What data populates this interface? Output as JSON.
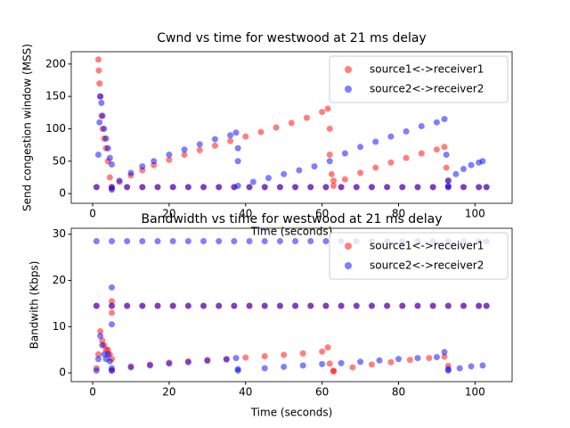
{
  "chart_data": [
    {
      "type": "scatter",
      "title": "Cwnd vs time for westwood at 21 ms delay",
      "x_label": "Time (seconds)",
      "y_label": "Send congestion window (MSS)",
      "xlim": [
        -5.6,
        109.7
      ],
      "xticks": [
        0,
        20,
        40,
        60,
        80,
        100
      ],
      "ylim": [
        -15,
        219
      ],
      "yticks": [
        0,
        50,
        100,
        150,
        200
      ],
      "legend": "upper right",
      "series": [
        {
          "name": "source1<->receiver1",
          "color": "#ff0000",
          "x": [
            1,
            5,
            9,
            13,
            17,
            21,
            25,
            29,
            33,
            37,
            41,
            45,
            49,
            53,
            57,
            61,
            65,
            69,
            73,
            77,
            81,
            85,
            89,
            93,
            97,
            101,
            103,
            1.5,
            1.6,
            1.8,
            2,
            2.3,
            2.6,
            3,
            3.5,
            4,
            4.5,
            5,
            7,
            10,
            13,
            16,
            20,
            24,
            28,
            32,
            36,
            40,
            44,
            48,
            52,
            56,
            60,
            61.5,
            62,
            62,
            62.5,
            63,
            63,
            66,
            70,
            74,
            78,
            82,
            86,
            90,
            92,
            92.5,
            93
          ],
          "values": [
            10,
            10,
            10,
            10,
            10,
            10,
            10,
            10,
            10,
            10,
            10,
            10,
            10,
            10,
            10,
            10,
            10,
            10,
            10,
            10,
            10,
            10,
            10,
            10,
            10,
            10,
            10,
            207,
            190,
            170,
            150,
            120,
            100,
            85,
            70,
            50,
            25,
            8,
            18,
            28,
            36,
            44,
            52,
            60,
            67,
            74,
            81,
            88,
            95,
            102,
            109,
            117,
            126,
            131,
            100,
            60,
            30,
            20,
            12,
            22,
            32,
            40,
            48,
            55,
            62,
            68,
            72,
            40,
            20
          ]
        },
        {
          "name": "source2<->receiver2",
          "color": "#0000ff",
          "x": [
            1,
            5,
            9,
            13,
            17,
            21,
            25,
            29,
            33,
            37,
            41,
            45,
            49,
            53,
            57,
            61,
            65,
            69,
            73,
            77,
            81,
            85,
            89,
            93,
            97,
            101,
            103,
            1.5,
            1.8,
            2,
            2.3,
            2.6,
            3,
            3.5,
            4,
            4.5,
            5,
            5,
            7,
            10,
            13,
            16,
            20,
            24,
            28,
            32,
            36,
            37.5,
            38,
            38,
            38,
            42,
            46,
            50,
            54,
            58,
            62,
            66,
            70,
            74,
            78,
            82,
            86,
            90,
            92,
            92.5,
            93,
            93,
            95,
            97,
            99,
            101,
            102
          ],
          "values": [
            10,
            10,
            10,
            10,
            10,
            10,
            10,
            10,
            10,
            10,
            10,
            10,
            10,
            10,
            10,
            10,
            10,
            10,
            10,
            10,
            10,
            10,
            10,
            10,
            10,
            10,
            10,
            60,
            110,
            150,
            140,
            120,
            100,
            85,
            70,
            55,
            45,
            6,
            20,
            32,
            42,
            50,
            60,
            68,
            76,
            84,
            90,
            94,
            70,
            50,
            12,
            18,
            24,
            30,
            36,
            42,
            50,
            62,
            72,
            80,
            88,
            96,
            104,
            110,
            115,
            60,
            20,
            12,
            30,
            38,
            44,
            48,
            50
          ]
        }
      ]
    },
    {
      "type": "scatter",
      "title": "Bandwidth vs time for westwood at 21 ms delay",
      "x_label": "Time (seconds)",
      "y_label": "Bandwith (Kbps)",
      "xlim": [
        -5.6,
        109.7
      ],
      "xticks": [
        0,
        20,
        40,
        60,
        80,
        100
      ],
      "ylim": [
        -1.9,
        31.3
      ],
      "yticks": [
        0,
        10,
        20,
        30
      ],
      "legend": "upper right",
      "series": [
        {
          "name": "source1<->receiver1",
          "color": "#ff0000",
          "x": [
            1,
            5,
            9,
            13,
            17,
            21,
            25,
            29,
            33,
            37,
            41,
            45,
            49,
            53,
            57,
            61,
            65,
            69,
            73,
            77,
            81,
            85,
            89,
            93,
            97,
            101,
            103,
            1,
            1.5,
            2,
            2.5,
            3,
            3.5,
            4,
            4.5,
            5,
            5,
            5,
            5,
            10,
            15,
            20,
            25,
            30,
            35,
            40,
            45,
            50,
            55,
            60,
            61.5,
            62,
            63,
            63,
            68,
            73,
            78,
            83,
            88,
            92,
            93
          ],
          "values": [
            14.5,
            14.5,
            14.5,
            14.5,
            14.5,
            14.5,
            14.5,
            14.5,
            14.5,
            14.5,
            14.5,
            14.5,
            14.5,
            14.5,
            14.5,
            14.5,
            14.5,
            14.5,
            14.5,
            14.5,
            14.5,
            14.5,
            14.5,
            14.5,
            14.5,
            14.5,
            14.5,
            1,
            4,
            9,
            7,
            6,
            5,
            5,
            4,
            3,
            15.5,
            13,
            0.5,
            1.4,
            1.8,
            2.2,
            2.5,
            2.8,
            3,
            3.3,
            3.6,
            3.9,
            4.2,
            4.6,
            5.5,
            2,
            0.3,
            0.5,
            1.2,
            1.8,
            2.3,
            2.8,
            3.2,
            3.5,
            1.5
          ]
        },
        {
          "name": "source2<->receiver2",
          "color": "#0000ff",
          "x": [
            1,
            5,
            9,
            13,
            17,
            21,
            25,
            29,
            33,
            37,
            41,
            45,
            49,
            53,
            57,
            61,
            65,
            69,
            73,
            77,
            81,
            85,
            89,
            93,
            97,
            101,
            103,
            1,
            5,
            9,
            13,
            17,
            21,
            25,
            29,
            33,
            37,
            41,
            45,
            49,
            53,
            57,
            61,
            65,
            69,
            73,
            77,
            81,
            85,
            89,
            93,
            97,
            101,
            103,
            5,
            5,
            1,
            1.5,
            2,
            2.5,
            3,
            3.5,
            4,
            4.5,
            5,
            5,
            10,
            15,
            20,
            25,
            30,
            35,
            37.5,
            38,
            38,
            45,
            50,
            55,
            60,
            65,
            70,
            75,
            80,
            85,
            90,
            92,
            93,
            93,
            96,
            99,
            102
          ],
          "values": [
            28.5,
            28.5,
            28.5,
            28.5,
            28.5,
            28.5,
            28.5,
            28.5,
            28.5,
            28.5,
            28.5,
            28.5,
            28.5,
            28.5,
            28.5,
            28.5,
            28.5,
            28.5,
            28.5,
            28.5,
            28.5,
            28.5,
            28.5,
            28.5,
            28.5,
            28.5,
            28.5,
            14.5,
            14.5,
            14.5,
            14.5,
            14.5,
            14.5,
            14.5,
            14.5,
            14.5,
            14.5,
            14.5,
            14.5,
            14.5,
            14.5,
            14.5,
            14.5,
            14.5,
            14.5,
            14.5,
            14.5,
            14.5,
            14.5,
            14.5,
            14.5,
            14.5,
            14.5,
            14.5,
            18.5,
            10.5,
            0.5,
            3,
            8,
            6,
            4,
            3,
            4,
            2.5,
            1,
            0.5,
            1.2,
            1.6,
            2,
            2.3,
            2.6,
            2.9,
            3.2,
            0.8,
            0.5,
            1,
            1.3,
            1.6,
            1.9,
            2.1,
            2.4,
            2.7,
            3,
            3.2,
            3.4,
            4.5,
            0.8,
            0.5,
            1,
            1.4,
            1.6
          ]
        }
      ]
    }
  ]
}
